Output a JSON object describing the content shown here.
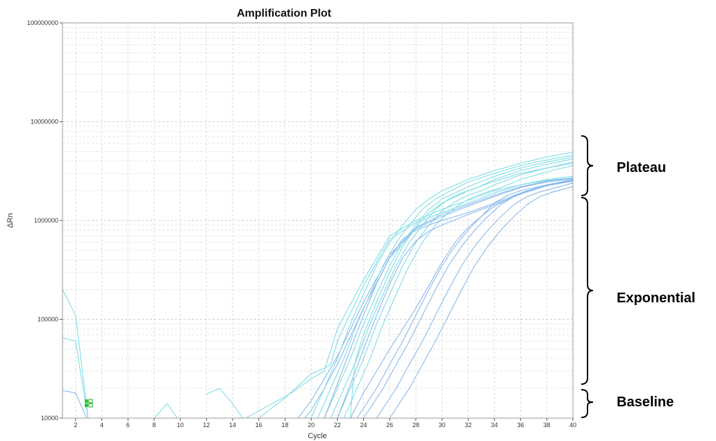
{
  "chart_data": {
    "type": "line",
    "title": "Amplification Plot",
    "xlabel": "Cycle",
    "ylabel": "ΔRn",
    "xlim": [
      1,
      40
    ],
    "ylim": [
      10000,
      100000000
    ],
    "yscale": "log",
    "grid": true,
    "x_ticks": [
      "2",
      "4",
      "6",
      "8",
      "10",
      "12",
      "14",
      "16",
      "18",
      "20",
      "22",
      "24",
      "26",
      "28",
      "30",
      "32",
      "34",
      "36",
      "38",
      "40"
    ],
    "y_ticks": [
      "10000",
      "100000",
      "1000000",
      "10000000",
      "100000000"
    ],
    "series_colors": {
      "cyan": "#7fdde6",
      "blue": "#8ab8ec"
    },
    "series": [
      {
        "color": "cyan",
        "x": [
          1,
          2,
          3
        ],
        "y": [
          200000,
          110000,
          9000
        ]
      },
      {
        "color": "cyan",
        "x": [
          1,
          2,
          3
        ],
        "y": [
          65000,
          60000,
          9000
        ]
      },
      {
        "color": "blue",
        "x": [
          1,
          2,
          3
        ],
        "y": [
          19000,
          18000,
          9000
        ]
      },
      {
        "color": "cyan",
        "x": [
          8,
          9,
          10
        ],
        "y": [
          10000,
          14000,
          9000
        ]
      },
      {
        "color": "cyan",
        "x": [
          12,
          13,
          14,
          15
        ],
        "y": [
          17500,
          20000,
          14000,
          9000
        ]
      },
      {
        "color": "cyan",
        "x": [
          15,
          17,
          18.5,
          20,
          21,
          22,
          24,
          26,
          28,
          30,
          32,
          34,
          36,
          38,
          40
        ],
        "y": [
          10000,
          14000,
          18000,
          25000,
          30000,
          80000,
          250000,
          700000,
          1000000,
          1300000,
          1600000,
          2000000,
          2300000,
          2550000,
          2700000
        ]
      },
      {
        "color": "cyan",
        "x": [
          16,
          18,
          20,
          21,
          21.5,
          22,
          24,
          26,
          28,
          30,
          32,
          34,
          36,
          38,
          40
        ],
        "y": [
          10000,
          16000,
          28000,
          32000,
          35000,
          60000,
          220000,
          650000,
          950000,
          1200000,
          1500000,
          1900000,
          2300000,
          2600000,
          2800000
        ]
      },
      {
        "color": "blue",
        "x": [
          19,
          20,
          21,
          22,
          24,
          26,
          28,
          30,
          32,
          34,
          36,
          38,
          40
        ],
        "y": [
          10000,
          15000,
          25000,
          42000,
          150000,
          450000,
          850000,
          1150000,
          1450000,
          1800000,
          2200000,
          2500000,
          2700000
        ]
      },
      {
        "color": "blue",
        "x": [
          19.5,
          20,
          21,
          22,
          24,
          26,
          28,
          30,
          32,
          34,
          36,
          38,
          40
        ],
        "y": [
          10000,
          12000,
          20000,
          35000,
          130000,
          420000,
          830000,
          1100000,
          1400000,
          1750000,
          2150000,
          2450000,
          2650000
        ]
      },
      {
        "color": "cyan",
        "x": [
          20,
          21,
          22,
          23,
          24,
          25,
          26,
          27,
          28,
          29,
          30,
          32,
          34,
          36,
          38,
          40
        ],
        "y": [
          10000,
          20000,
          40000,
          90000,
          180000,
          350000,
          600000,
          900000,
          1300000,
          1650000,
          2000000,
          2600000,
          3200000,
          3800000,
          4400000,
          4900000
        ]
      },
      {
        "color": "cyan",
        "x": [
          20.5,
          21.5,
          22.5,
          23.5,
          24.5,
          25.5,
          26.5,
          27.5,
          28.5,
          29.5,
          30.5,
          32,
          34,
          36,
          38,
          40
        ],
        "y": [
          10000,
          20000,
          40000,
          90000,
          180000,
          350000,
          600000,
          900000,
          1300000,
          1650000,
          1950000,
          2450000,
          3000000,
          3600000,
          4100000,
          4600000
        ]
      },
      {
        "color": "cyan",
        "x": [
          21,
          22,
          23,
          24,
          25,
          26,
          27,
          28,
          29,
          30,
          31,
          32,
          34,
          36,
          38,
          40
        ],
        "y": [
          10000,
          20000,
          40000,
          90000,
          180000,
          350000,
          600000,
          900000,
          1300000,
          1650000,
          1900000,
          2200000,
          2800000,
          3400000,
          3900000,
          4400000
        ]
      },
      {
        "color": "cyan",
        "x": [
          21.5,
          22.5,
          23.5,
          24.5,
          25.5,
          26.5,
          27.5,
          28.5,
          29.5,
          30.5,
          31.5,
          32.5,
          34,
          36,
          38,
          40
        ],
        "y": [
          10000,
          20000,
          40000,
          90000,
          180000,
          350000,
          600000,
          900000,
          1300000,
          1650000,
          1900000,
          2100000,
          2600000,
          3200000,
          3700000,
          4200000
        ]
      },
      {
        "color": "cyan",
        "x": [
          22,
          23,
          24,
          25,
          26,
          27,
          28,
          29,
          30,
          31,
          32,
          33,
          34,
          36,
          38,
          40
        ],
        "y": [
          10000,
          20000,
          40000,
          90000,
          180000,
          350000,
          600000,
          900000,
          1250000,
          1550000,
          1800000,
          2000000,
          2300000,
          2900000,
          3400000,
          3900000
        ]
      },
      {
        "color": "cyan",
        "x": [
          22.5,
          23.5,
          24.5,
          25.5,
          26.5,
          27.5,
          28.5,
          29.5,
          30.5,
          31.5,
          32.5,
          33.5,
          34.5,
          36,
          38,
          40
        ],
        "y": [
          10000,
          20000,
          40000,
          90000,
          180000,
          350000,
          600000,
          900000,
          1200000,
          1500000,
          1750000,
          1950000,
          2150000,
          2600000,
          3100000,
          3600000
        ]
      },
      {
        "color": "blue",
        "x": [
          21,
          22,
          23,
          24,
          25,
          26,
          27,
          28,
          29,
          30,
          32,
          34,
          36,
          38,
          40
        ],
        "y": [
          10000,
          22000,
          50000,
          110000,
          230000,
          420000,
          650000,
          800000,
          900000,
          1000000,
          1200000,
          1500000,
          1900000,
          2300000,
          2600000
        ]
      },
      {
        "color": "blue",
        "x": [
          22,
          23,
          24,
          25,
          26,
          27,
          28,
          29,
          30,
          32,
          34,
          36,
          38,
          40
        ],
        "y": [
          10000,
          22000,
          50000,
          110000,
          230000,
          420000,
          620000,
          780000,
          900000,
          1150000,
          1450000,
          1850000,
          2250000,
          2550000
        ]
      },
      {
        "color": "blue",
        "x": [
          23.5,
          25,
          26,
          27,
          28,
          29,
          30,
          31,
          32,
          33,
          34,
          35,
          36,
          38,
          40
        ],
        "y": [
          10000,
          20000,
          35000,
          60000,
          110000,
          200000,
          350000,
          550000,
          800000,
          1100000,
          1500000,
          1800000,
          2000000,
          2300000,
          2500000
        ]
      },
      {
        "color": "blue",
        "x": [
          24,
          25.5,
          26.5,
          27.5,
          28.5,
          29.5,
          30.5,
          31.5,
          32.5,
          33.5,
          34.5,
          35.5,
          36.5,
          38,
          40
        ],
        "y": [
          10000,
          20000,
          35000,
          60000,
          110000,
          200000,
          350000,
          550000,
          800000,
          1100000,
          1450000,
          1750000,
          1950000,
          2250000,
          2500000
        ]
      },
      {
        "color": "blue",
        "x": [
          25,
          26.5,
          27.5,
          28.5,
          29.5,
          30.5,
          31.5,
          32.5,
          33.5,
          34.5,
          35.5,
          36.5,
          37.5,
          40
        ],
        "y": [
          10000,
          20000,
          35000,
          60000,
          110000,
          200000,
          350000,
          550000,
          800000,
          1100000,
          1450000,
          1750000,
          1950000,
          2400000
        ]
      },
      {
        "color": "blue",
        "x": [
          26,
          27.5,
          28.5,
          29.5,
          30.5,
          31.5,
          32.5,
          33.5,
          34.5,
          35.5,
          36.5,
          37.5,
          38.5,
          40
        ],
        "y": [
          10000,
          20000,
          35000,
          60000,
          110000,
          200000,
          350000,
          550000,
          800000,
          1100000,
          1450000,
          1750000,
          1950000,
          2200000
        ]
      },
      {
        "color": "cyan",
        "x": [
          23,
          23.3,
          24,
          25,
          26,
          27,
          28,
          29,
          30,
          32,
          34,
          36,
          38,
          40
        ],
        "y": [
          10000,
          35000,
          70000,
          150000,
          300000,
          550000,
          850000,
          1200000,
          1500000,
          2000000,
          2500000,
          3000000,
          3400000,
          3800000
        ]
      },
      {
        "color": "blue",
        "x": [
          23,
          24,
          25,
          26,
          27,
          28,
          29,
          30,
          31,
          32,
          33,
          34,
          36,
          38,
          40
        ],
        "y": [
          10000,
          18000,
          30000,
          50000,
          80000,
          130000,
          220000,
          380000,
          600000,
          850000,
          1100000,
          1400000,
          1900000,
          2300000,
          2600000
        ]
      }
    ]
  },
  "annotations": {
    "plateau": "Plateau",
    "exponential": "Exponential",
    "baseline": "Baseline"
  }
}
